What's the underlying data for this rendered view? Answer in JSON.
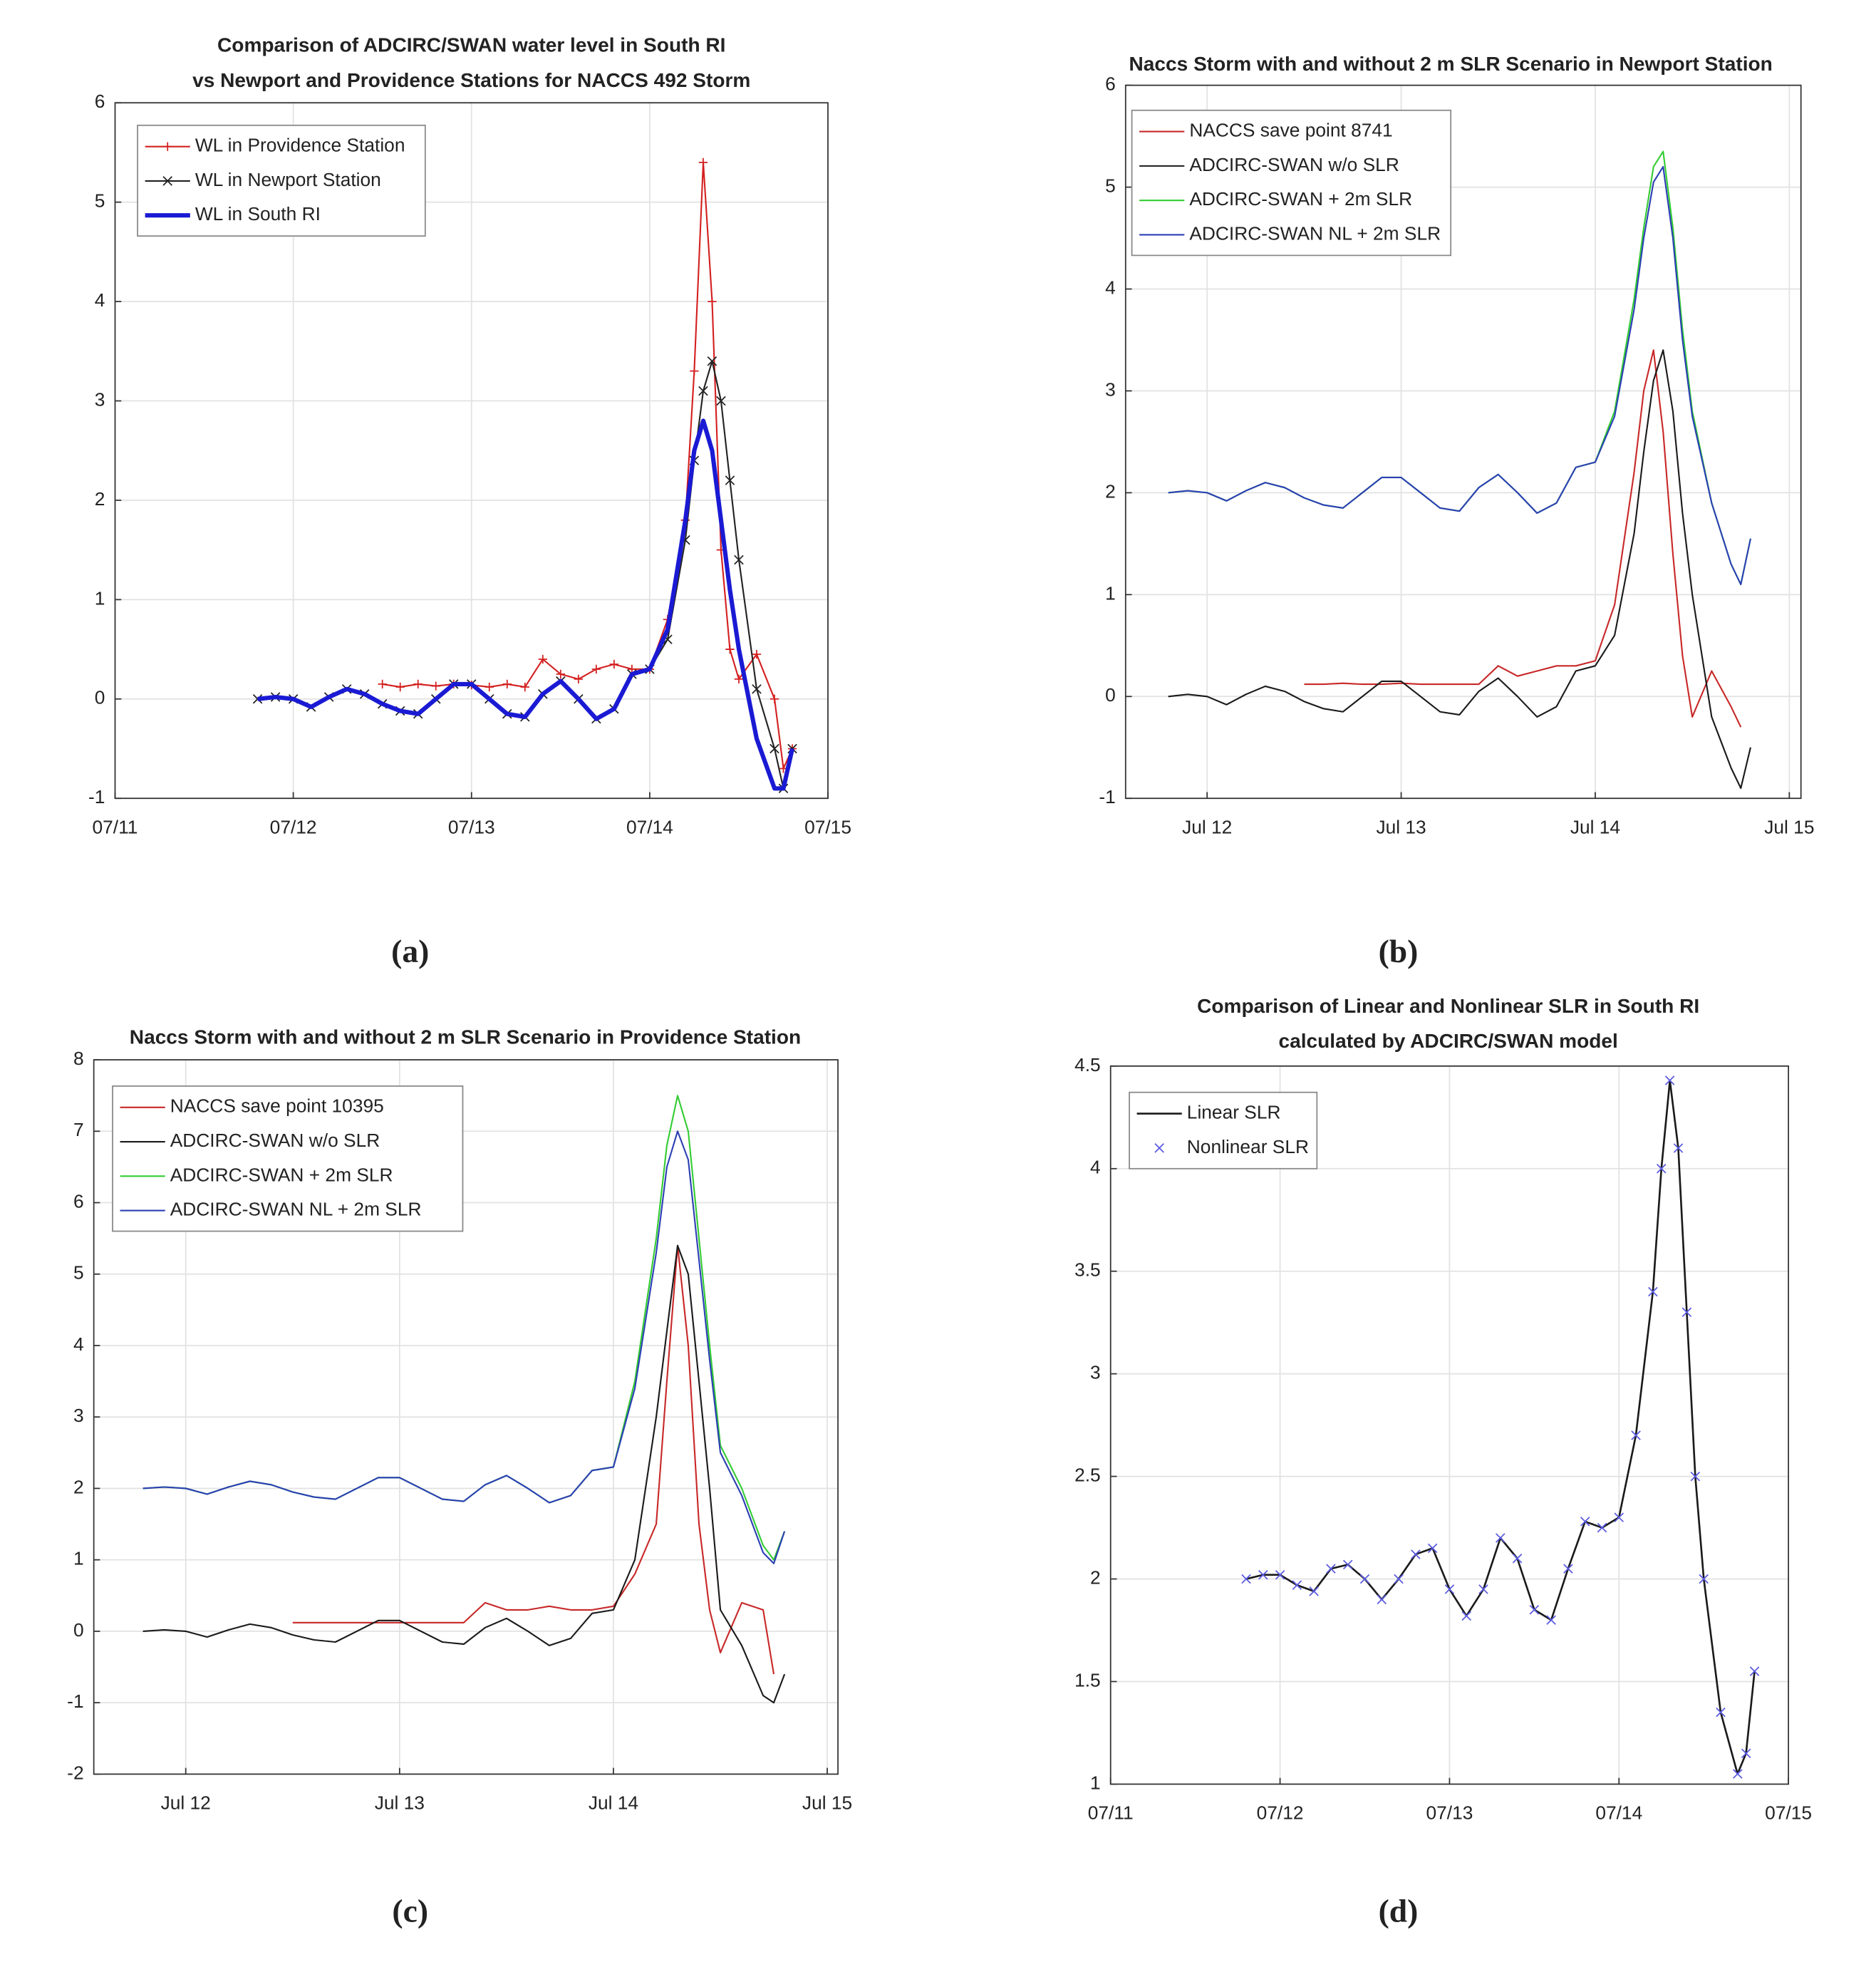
{
  "chart_data": [
    {
      "type": "line",
      "label": "(a)",
      "title": [
        "Comparison of ADCIRC/SWAN water level in South RI",
        "vs Newport and Providence Stations for NACCS 492 Storm"
      ],
      "x": [
        0.8,
        0.9,
        1.0,
        1.1,
        1.2,
        1.3,
        1.4,
        1.5,
        1.6,
        1.7,
        1.8,
        1.9,
        2.0,
        2.1,
        2.2,
        2.3,
        2.4,
        2.5,
        2.6,
        2.7,
        2.8,
        2.9,
        3.0,
        3.1,
        3.2,
        3.25,
        3.3,
        3.35,
        3.4,
        3.45,
        3.5,
        3.6,
        3.7,
        3.75,
        3.8
      ],
      "xlim": [
        0,
        4
      ],
      "xticks": [
        {
          "value": 0,
          "label": "07/11"
        },
        {
          "value": 1,
          "label": "07/12"
        },
        {
          "value": 2,
          "label": "07/13"
        },
        {
          "value": 3,
          "label": "07/14"
        },
        {
          "value": 4,
          "label": "07/15"
        }
      ],
      "ylim": [
        -1,
        6
      ],
      "yticks": [
        -1,
        0,
        1,
        2,
        3,
        4,
        5,
        6
      ],
      "grid": true,
      "legend": "upper left",
      "series": [
        {
          "name": "WL in Providence Station",
          "color": "#d42020",
          "marker": "+",
          "linewidth": 1.2,
          "values": [
            null,
            null,
            null,
            null,
            null,
            null,
            null,
            0.15,
            0.12,
            0.15,
            0.13,
            0.15,
            0.14,
            0.12,
            0.15,
            0.12,
            0.4,
            0.25,
            0.2,
            0.3,
            0.35,
            0.3,
            0.3,
            0.8,
            1.8,
            3.3,
            5.4,
            4.0,
            1.5,
            0.5,
            0.2,
            0.45,
            0.0,
            -0.7,
            -0.5
          ]
        },
        {
          "name": "WL in Newport Station",
          "color": "#222222",
          "marker": "x",
          "linewidth": 1.2,
          "values": [
            0,
            0.02,
            0,
            -0.08,
            0.02,
            0.1,
            0.05,
            -0.05,
            -0.12,
            -0.15,
            0,
            0.15,
            0.15,
            0,
            -0.15,
            -0.18,
            0.05,
            0.18,
            0,
            -0.2,
            -0.1,
            0.25,
            0.3,
            0.6,
            1.6,
            2.4,
            3.1,
            3.4,
            3.0,
            2.2,
            1.4,
            0.1,
            -0.5,
            -0.9,
            -0.5
          ]
        },
        {
          "name": "WL in South RI",
          "color": "#1a1ad4",
          "linewidth": 3.5,
          "values": [
            0,
            0.02,
            0,
            -0.08,
            0.02,
            0.1,
            0.05,
            -0.05,
            -0.12,
            -0.15,
            0,
            0.15,
            0.15,
            0,
            -0.15,
            -0.18,
            0.05,
            0.18,
            0,
            -0.2,
            -0.1,
            0.25,
            0.3,
            0.7,
            1.8,
            2.5,
            2.8,
            2.5,
            1.8,
            1.1,
            0.5,
            -0.4,
            -0.9,
            -0.9,
            -0.5
          ]
        }
      ]
    },
    {
      "type": "line",
      "label": "(b)",
      "title": [
        "Naccs Storm with and without 2 m SLR Scenario in Newport Station"
      ],
      "x": [
        0.8,
        0.9,
        1.0,
        1.1,
        1.2,
        1.3,
        1.4,
        1.5,
        1.6,
        1.7,
        1.8,
        1.9,
        2.0,
        2.1,
        2.2,
        2.3,
        2.4,
        2.5,
        2.6,
        2.7,
        2.8,
        2.9,
        3.0,
        3.1,
        3.2,
        3.25,
        3.3,
        3.35,
        3.4,
        3.45,
        3.5,
        3.6,
        3.7,
        3.75,
        3.8
      ],
      "xlim": [
        0.58,
        4.06
      ],
      "xticks": [
        {
          "value": 1,
          "label": "Jul 12"
        },
        {
          "value": 2,
          "label": "Jul 13"
        },
        {
          "value": 3,
          "label": "Jul 14"
        },
        {
          "value": 4,
          "label": "Jul 15"
        }
      ],
      "ylim": [
        -1,
        6
      ],
      "yticks": [
        -1,
        0,
        1,
        2,
        3,
        4,
        5,
        6
      ],
      "grid": true,
      "legend": "upper left",
      "series": [
        {
          "name": "NACCS save point 8741",
          "color": "#c82828",
          "linewidth": 1.2,
          "values": [
            null,
            null,
            null,
            null,
            null,
            null,
            null,
            0.12,
            0.12,
            0.13,
            0.12,
            0.12,
            0.13,
            0.12,
            0.12,
            0.12,
            0.12,
            0.3,
            0.2,
            0.25,
            0.3,
            0.3,
            0.35,
            0.9,
            2.2,
            3.0,
            3.4,
            2.6,
            1.4,
            0.4,
            -0.2,
            0.25,
            -0.1,
            -0.3,
            null
          ]
        },
        {
          "name": "ADCIRC-SWAN w/o SLR",
          "color": "#1a1a1a",
          "linewidth": 1.2,
          "values": [
            0,
            0.02,
            0,
            -0.08,
            0.02,
            0.1,
            0.05,
            -0.05,
            -0.12,
            -0.15,
            0,
            0.15,
            0.15,
            0,
            -0.15,
            -0.18,
            0.05,
            0.18,
            0,
            -0.2,
            -0.1,
            0.25,
            0.3,
            0.6,
            1.6,
            2.4,
            3.1,
            3.4,
            2.8,
            1.8,
            1.0,
            -0.2,
            -0.7,
            -0.9,
            -0.5
          ]
        },
        {
          "name": "ADCIRC-SWAN + 2m SLR",
          "color": "#33cc33",
          "linewidth": 1.2,
          "values": [
            2,
            2.02,
            2,
            1.92,
            2.02,
            2.1,
            2.05,
            1.95,
            1.88,
            1.85,
            2,
            2.15,
            2.15,
            2,
            1.85,
            1.82,
            2.05,
            2.18,
            2,
            1.8,
            1.9,
            2.25,
            2.3,
            2.8,
            3.9,
            4.6,
            5.2,
            5.35,
            4.6,
            3.6,
            2.8,
            1.9,
            1.3,
            1.1,
            1.55
          ]
        },
        {
          "name": "ADCIRC-SWAN NL + 2m SLR",
          "color": "#2b3fb4",
          "linewidth": 1.2,
          "values": [
            2,
            2.02,
            2,
            1.92,
            2.02,
            2.1,
            2.05,
            1.95,
            1.88,
            1.85,
            2,
            2.15,
            2.15,
            2,
            1.85,
            1.82,
            2.05,
            2.18,
            2,
            1.8,
            1.9,
            2.25,
            2.3,
            2.75,
            3.8,
            4.5,
            5.05,
            5.2,
            4.5,
            3.5,
            2.75,
            1.9,
            1.3,
            1.1,
            1.55
          ]
        }
      ]
    },
    {
      "type": "line",
      "label": "(c)",
      "title": [
        "Naccs Storm with and without 2 m SLR Scenario in Providence Station"
      ],
      "x": [
        0.8,
        0.9,
        1.0,
        1.1,
        1.2,
        1.3,
        1.4,
        1.5,
        1.6,
        1.7,
        1.8,
        1.9,
        2.0,
        2.1,
        2.2,
        2.3,
        2.4,
        2.5,
        2.6,
        2.7,
        2.8,
        2.9,
        3.0,
        3.1,
        3.2,
        3.25,
        3.3,
        3.35,
        3.4,
        3.45,
        3.5,
        3.6,
        3.7,
        3.75,
        3.8
      ],
      "xlim": [
        0.57,
        4.05
      ],
      "xticks": [
        {
          "value": 1,
          "label": "Jul 12"
        },
        {
          "value": 2,
          "label": "Jul 13"
        },
        {
          "value": 3,
          "label": "Jul 14"
        },
        {
          "value": 4,
          "label": "Jul 15"
        }
      ],
      "ylim": [
        -2,
        8
      ],
      "yticks": [
        -2,
        -1,
        0,
        1,
        2,
        3,
        4,
        5,
        6,
        7,
        8
      ],
      "grid": true,
      "legend": "upper left",
      "series": [
        {
          "name": "NACCS save point 10395",
          "color": "#c82828",
          "linewidth": 1.2,
          "values": [
            null,
            null,
            null,
            null,
            null,
            null,
            null,
            0.12,
            0.12,
            0.12,
            0.12,
            0.12,
            0.12,
            0.12,
            0.12,
            0.12,
            0.4,
            0.3,
            0.3,
            0.35,
            0.3,
            0.3,
            0.35,
            0.8,
            1.5,
            3.5,
            5.4,
            4.0,
            1.5,
            0.3,
            -0.3,
            0.4,
            0.3,
            -0.6,
            null
          ]
        },
        {
          "name": "ADCIRC-SWAN w/o SLR",
          "color": "#1a1a1a",
          "linewidth": 1.2,
          "values": [
            0,
            0.02,
            0,
            -0.08,
            0.02,
            0.1,
            0.05,
            -0.05,
            -0.12,
            -0.15,
            0,
            0.15,
            0.15,
            0,
            -0.15,
            -0.18,
            0.05,
            0.18,
            0,
            -0.2,
            -0.1,
            0.25,
            0.3,
            1.0,
            3.0,
            4.2,
            5.4,
            5.0,
            3.5,
            2.0,
            0.3,
            -0.2,
            -0.9,
            -1.0,
            -0.6
          ]
        },
        {
          "name": "ADCIRC-SWAN + 2m SLR",
          "color": "#33cc33",
          "linewidth": 1.2,
          "values": [
            2,
            2.02,
            2,
            1.92,
            2.02,
            2.1,
            2.05,
            1.95,
            1.88,
            1.85,
            2,
            2.15,
            2.15,
            2,
            1.85,
            1.82,
            2.05,
            2.18,
            2,
            1.8,
            1.9,
            2.25,
            2.3,
            3.5,
            5.5,
            6.8,
            7.5,
            7.0,
            5.5,
            4.0,
            2.6,
            2.0,
            1.2,
            1.0,
            1.4
          ]
        },
        {
          "name": "ADCIRC-SWAN NL + 2m SLR",
          "color": "#2b3fb4",
          "linewidth": 1.2,
          "values": [
            2,
            2.02,
            2,
            1.92,
            2.02,
            2.1,
            2.05,
            1.95,
            1.88,
            1.85,
            2,
            2.15,
            2.15,
            2,
            1.85,
            1.82,
            2.05,
            2.18,
            2,
            1.8,
            1.9,
            2.25,
            2.3,
            3.4,
            5.3,
            6.5,
            7.0,
            6.6,
            5.2,
            3.8,
            2.5,
            1.9,
            1.1,
            0.95,
            1.4
          ]
        }
      ]
    },
    {
      "type": "line",
      "label": "(d)",
      "title": [
        "Comparison of Linear and Nonlinear SLR in South RI",
        "calculated by ADCIRC/SWAN model"
      ],
      "x": [
        0.8,
        0.9,
        1.0,
        1.1,
        1.2,
        1.3,
        1.4,
        1.5,
        1.6,
        1.7,
        1.8,
        1.9,
        2.0,
        2.1,
        2.2,
        2.3,
        2.4,
        2.5,
        2.6,
        2.7,
        2.8,
        2.9,
        3.0,
        3.1,
        3.2,
        3.25,
        3.3,
        3.35,
        3.4,
        3.45,
        3.5,
        3.6,
        3.7,
        3.75,
        3.8
      ],
      "xlim": [
        0,
        4
      ],
      "xticks": [
        {
          "value": 0,
          "label": "07/11"
        },
        {
          "value": 1,
          "label": "07/12"
        },
        {
          "value": 2,
          "label": "07/13"
        },
        {
          "value": 3,
          "label": "07/14"
        },
        {
          "value": 4,
          "label": "07/15"
        }
      ],
      "ylim": [
        1,
        4.5
      ],
      "yticks": [
        1,
        1.5,
        2,
        2.5,
        3,
        3.5,
        4,
        4.5
      ],
      "grid": true,
      "legend": "upper left",
      "series": [
        {
          "name": "Linear SLR",
          "color": "#1a1a1a",
          "linewidth": 1.5,
          "values": [
            2.0,
            2.02,
            2.02,
            1.97,
            1.94,
            2.05,
            2.07,
            2.0,
            1.9,
            2.0,
            2.12,
            2.15,
            1.95,
            1.82,
            1.95,
            2.2,
            2.1,
            1.85,
            1.8,
            2.05,
            2.28,
            2.25,
            2.3,
            2.7,
            3.4,
            4.0,
            4.43,
            4.1,
            3.3,
            2.5,
            2.0,
            1.35,
            1.05,
            1.15,
            1.55
          ]
        },
        {
          "name": "Nonlinear SLR",
          "color": "#5a5ae0",
          "marker": "x",
          "linestyle": "none",
          "values": [
            2.0,
            2.02,
            2.02,
            1.97,
            1.94,
            2.05,
            2.07,
            2.0,
            1.9,
            2.0,
            2.12,
            2.15,
            1.95,
            1.82,
            1.95,
            2.2,
            2.1,
            1.85,
            1.8,
            2.05,
            2.28,
            2.25,
            2.3,
            2.7,
            3.4,
            4.0,
            4.43,
            4.1,
            3.3,
            2.5,
            2.0,
            1.35,
            1.05,
            1.15,
            1.55
          ]
        }
      ]
    }
  ]
}
